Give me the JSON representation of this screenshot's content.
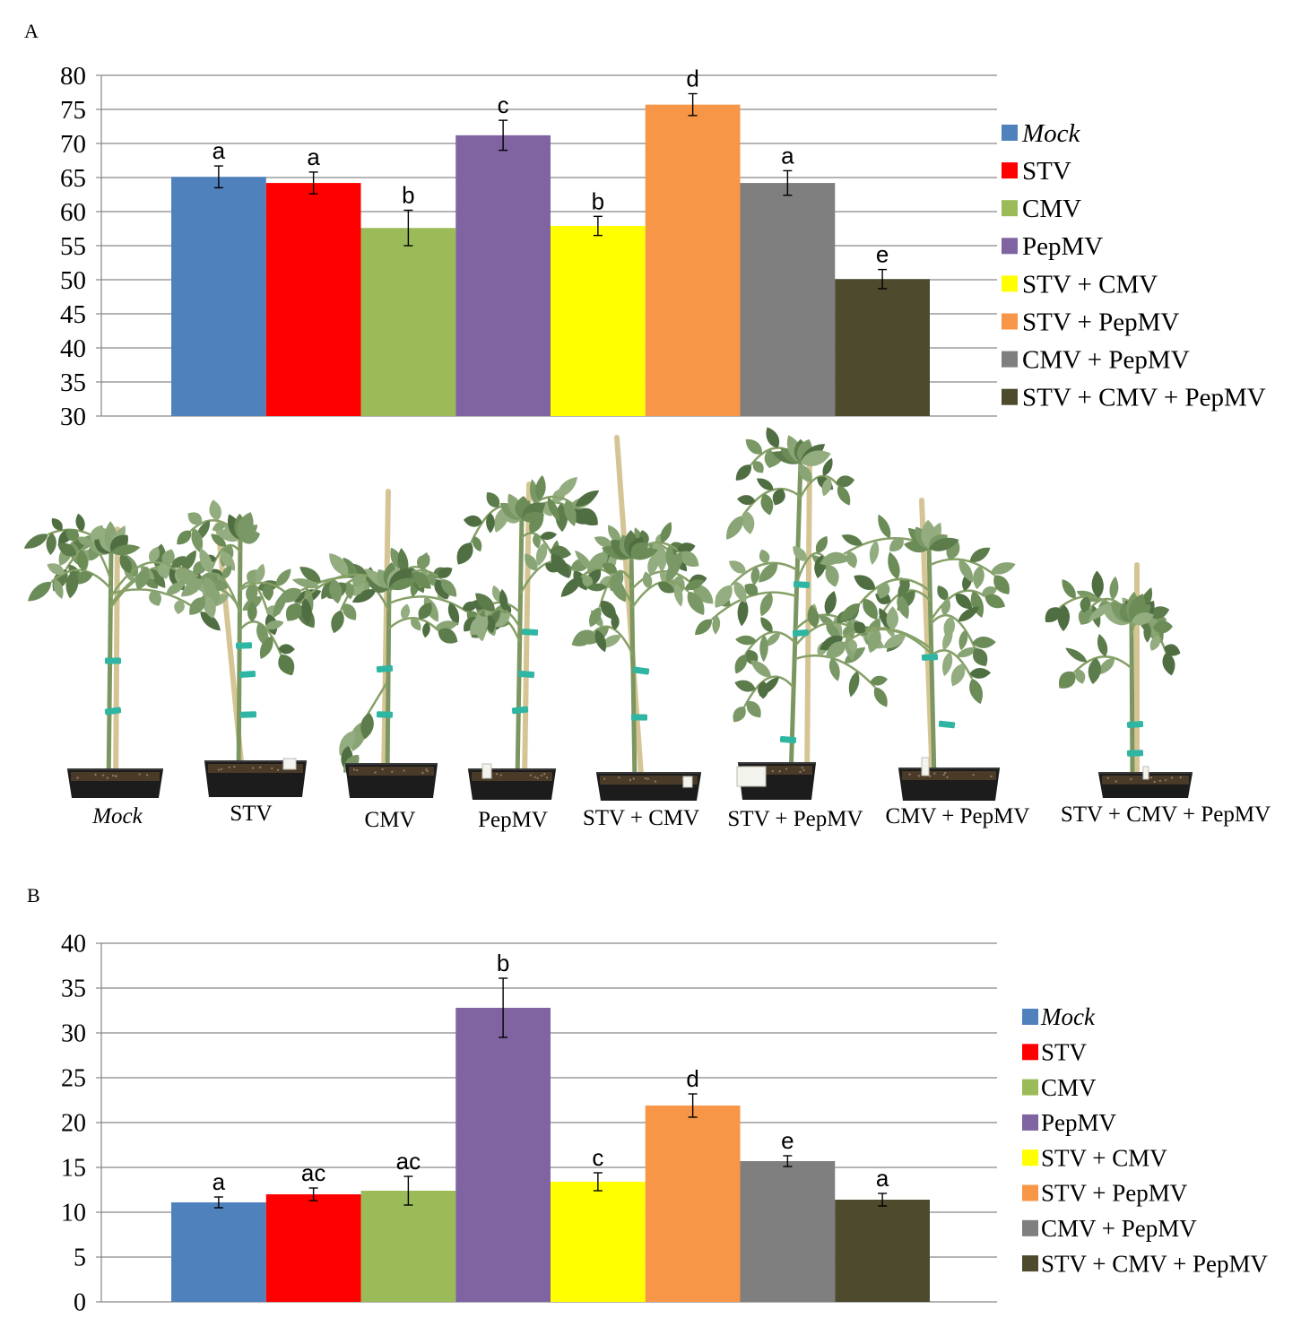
{
  "photo": {
    "labels": [
      "Mock",
      "STV",
      "CMV",
      "PepMV",
      "STV + CMV",
      "STV + PepMV",
      "CMV + PepMV",
      "STV + CMV + PepMV"
    ]
  },
  "chart_data": [
    {
      "panel": "A",
      "type": "bar",
      "title": "",
      "xlabel": "",
      "ylabel": "",
      "ylim": [
        30,
        80
      ],
      "yticks": [
        30,
        35,
        40,
        45,
        50,
        55,
        60,
        65,
        70,
        75,
        80
      ],
      "grid": true,
      "legend_position": "right",
      "series": [
        {
          "name": "Mock",
          "value": 65.1,
          "error": 1.6,
          "letter": "a",
          "color": "#4F81BD"
        },
        {
          "name": "STV",
          "value": 64.2,
          "error": 1.6,
          "letter": "a",
          "color": "#FF0000"
        },
        {
          "name": "CMV",
          "value": 57.6,
          "error": 2.6,
          "letter": "b",
          "color": "#9BBB59"
        },
        {
          "name": "PepMV",
          "value": 71.2,
          "error": 2.2,
          "letter": "c",
          "color": "#8064A2"
        },
        {
          "name": "STV + CMV",
          "value": 57.9,
          "error": 1.4,
          "letter": "b",
          "color": "#FFFF00"
        },
        {
          "name": "STV + PepMV",
          "value": 75.7,
          "error": 1.6,
          "letter": "d",
          "color": "#F79646"
        },
        {
          "name": "CMV + PepMV",
          "value": 64.2,
          "error": 1.8,
          "letter": "a",
          "color": "#7F7F7F"
        },
        {
          "name": "STV + CMV + PepMV",
          "value": 50.1,
          "error": 1.4,
          "letter": "e",
          "color": "#4D4A2D"
        }
      ]
    },
    {
      "panel": "B",
      "type": "bar",
      "title": "",
      "xlabel": "",
      "ylabel": "",
      "ylim": [
        0,
        40
      ],
      "yticks": [
        0,
        5,
        10,
        15,
        20,
        25,
        30,
        35,
        40
      ],
      "grid": true,
      "legend_position": "right",
      "series": [
        {
          "name": "Mock",
          "value": 11.1,
          "error": 0.6,
          "letter": "a",
          "color": "#4F81BD"
        },
        {
          "name": "STV",
          "value": 12.0,
          "error": 0.7,
          "letter": "ac",
          "color": "#FF0000"
        },
        {
          "name": "CMV",
          "value": 12.4,
          "error": 1.6,
          "letter": "ac",
          "color": "#9BBB59"
        },
        {
          "name": "PepMV",
          "value": 32.8,
          "error": 3.3,
          "letter": "b",
          "color": "#8064A2"
        },
        {
          "name": "STV + CMV",
          "value": 13.4,
          "error": 1.0,
          "letter": "c",
          "color": "#FFFF00"
        },
        {
          "name": "STV + PepMV",
          "value": 21.9,
          "error": 1.3,
          "letter": "d",
          "color": "#F79646"
        },
        {
          "name": "CMV + PepMV",
          "value": 15.7,
          "error": 0.6,
          "letter": "e",
          "color": "#7F7F7F"
        },
        {
          "name": "STV + CMV + PepMV",
          "value": 11.4,
          "error": 0.7,
          "letter": "a",
          "color": "#4D4A2D"
        }
      ]
    }
  ]
}
